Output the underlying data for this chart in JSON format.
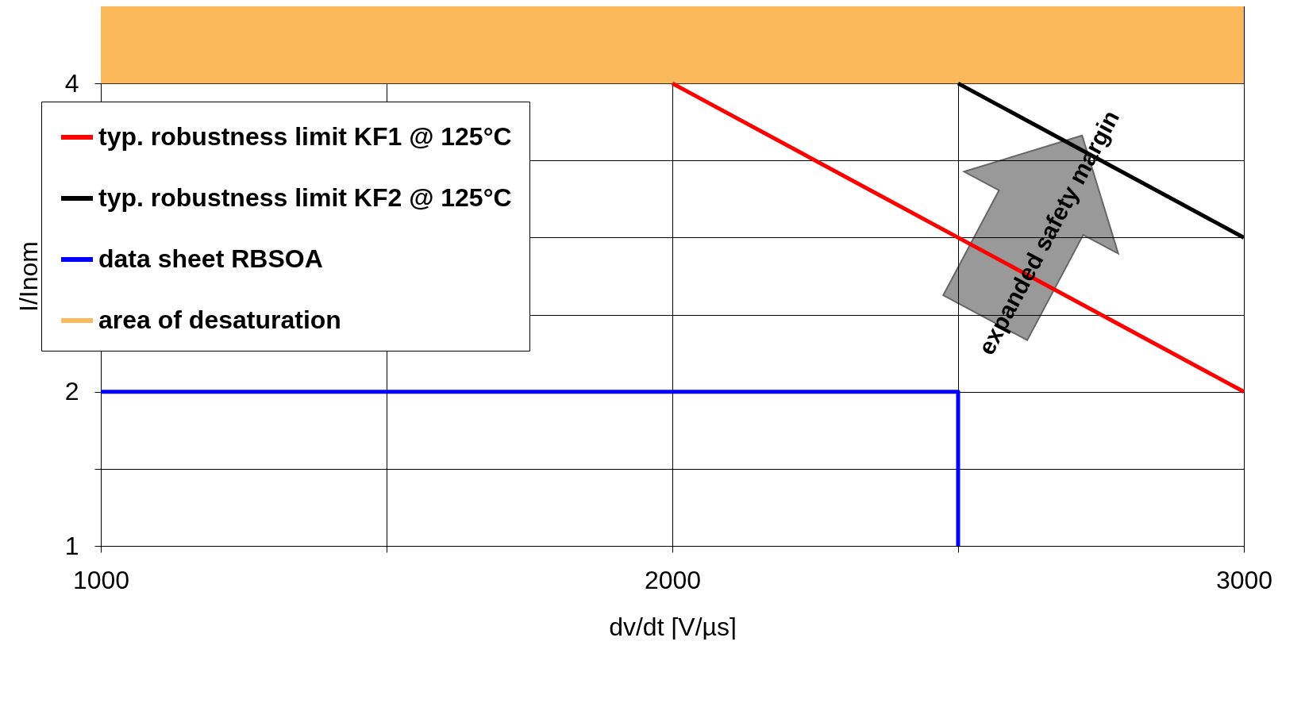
{
  "chart_data": {
    "type": "line",
    "xlabel": "dv/dt [V/µs]",
    "ylabel": "I/Inom",
    "xlim": [
      1000,
      3000
    ],
    "xticks": [
      1000,
      {
        "value": 1500,
        "label": null
      },
      2000,
      {
        "value": 2500,
        "label": null
      },
      3000
    ],
    "ylim": [
      1,
      4.5
    ],
    "yticks": [
      1,
      {
        "value": 1.5,
        "label": null
      },
      2,
      {
        "value": 2.5,
        "label": null
      },
      {
        "value": 3,
        "label": null
      },
      {
        "value": 3.5,
        "label": null
      },
      4
    ],
    "grid": true,
    "legend": "top left",
    "marker": "none",
    "series": [
      {
        "name": "typ. robustness limit KF1 @ 125°C",
        "color": "#ff0000",
        "x": [
          2000,
          3000
        ],
        "values": [
          4,
          2
        ]
      },
      {
        "name": "typ. robustness limit KF2 @ 125°C",
        "color": "#000000",
        "x": [
          2500,
          3000
        ],
        "values": [
          4,
          3
        ]
      },
      {
        "name": "data sheet RBSOA",
        "color": "#0000ff",
        "x": [
          1000,
          2500,
          2500
        ],
        "values": [
          2,
          2,
          1
        ]
      }
    ],
    "bands": [
      {
        "axis": "y",
        "from": 4,
        "to": 4.5,
        "label": "area of desaturation",
        "color": "#fbb95c"
      }
    ],
    "annotations": [
      "expanded safety margin"
    ]
  }
}
